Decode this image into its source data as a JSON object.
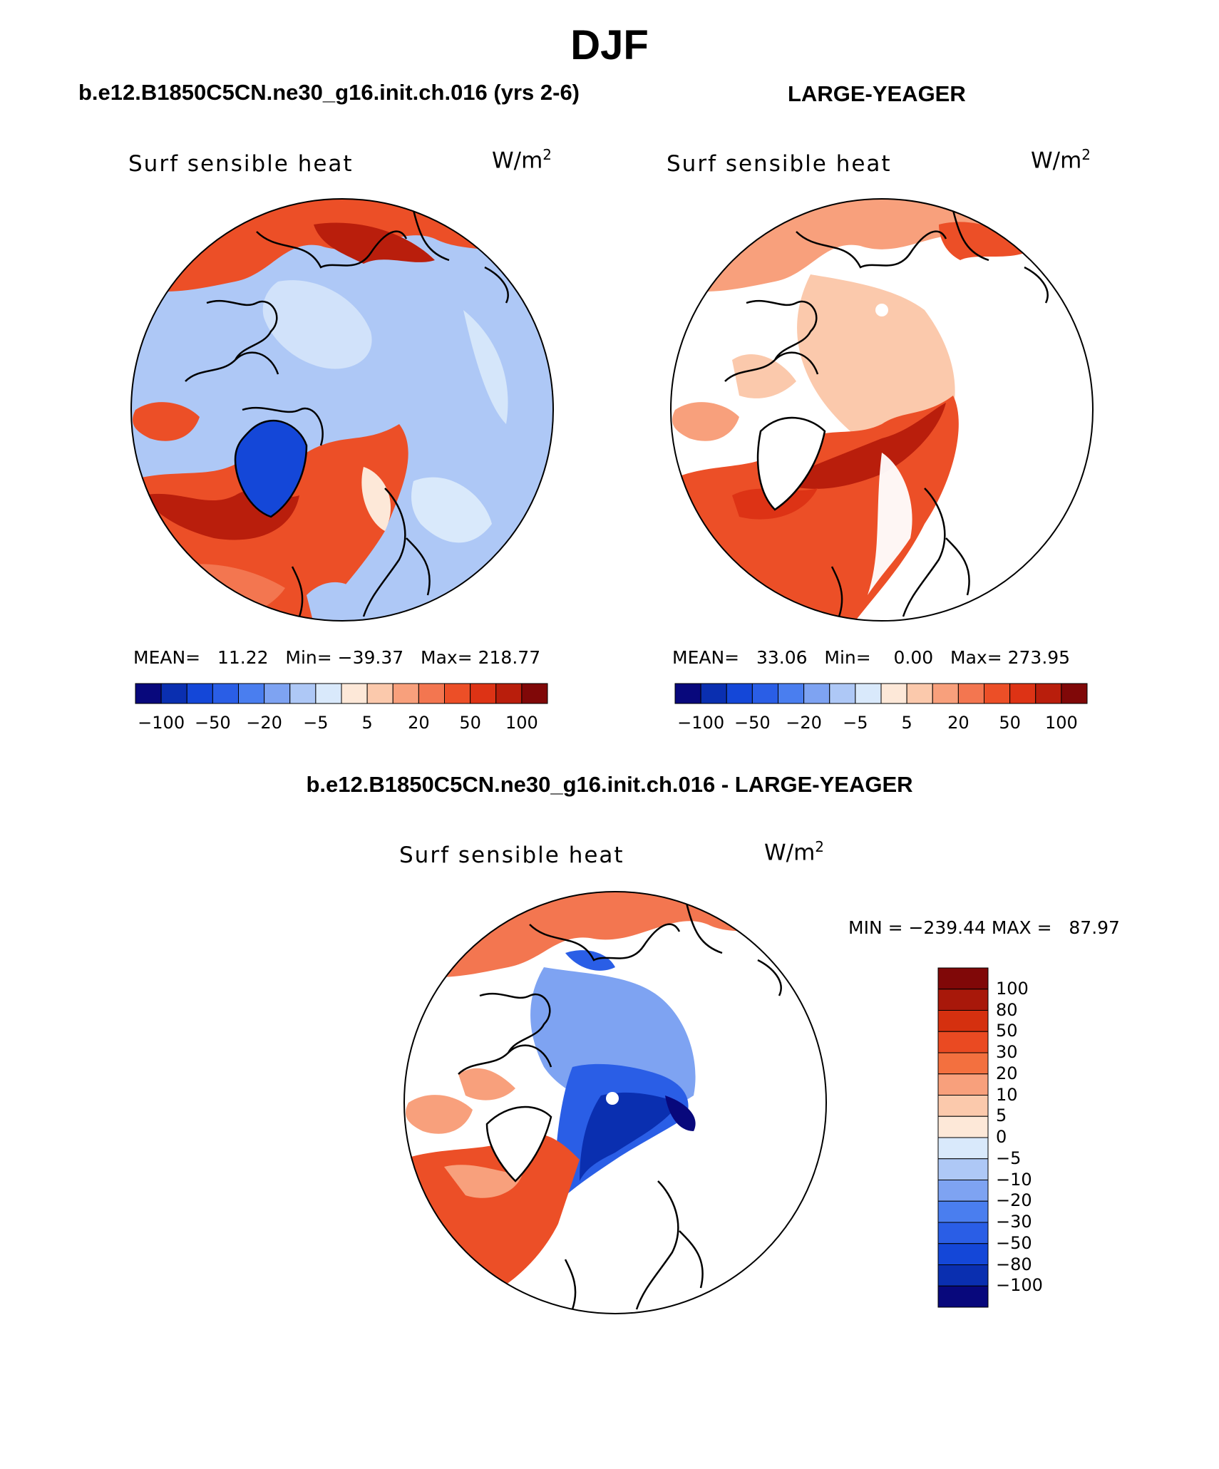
{
  "title": "DJF",
  "panels": [
    {
      "case_title": "b.e12.B1850C5CN.ne30_g16.init.ch.016 (yrs 2-6)",
      "variable": "Surf sensible heat",
      "units": "W/m",
      "units_exp": "2",
      "stats": {
        "mean_label": "MEAN=",
        "mean": "11.22",
        "min_label": "Min=",
        "min": "−39.37",
        "max_label": "Max=",
        "max": "218.77"
      }
    },
    {
      "case_title": "LARGE-YEAGER",
      "variable": "Surf sensible heat",
      "units": "W/m",
      "units_exp": "2",
      "stats": {
        "mean_label": "MEAN=",
        "mean": "33.06",
        "min_label": "Min=",
        "min": "0.00",
        "max_label": "Max=",
        "max": "273.95"
      }
    }
  ],
  "colorbar_horizontal": {
    "colors": [
      "#08087c",
      "#0a2fb0",
      "#1447d8",
      "#2a5ee6",
      "#4a7eef",
      "#7ea3f2",
      "#aec8f6",
      "#d9e9fb",
      "#fde8d8",
      "#fbc9ac",
      "#f8a07c",
      "#f37650",
      "#ec4f27",
      "#dd3315",
      "#b91e0c",
      "#800808"
    ],
    "labels": [
      "−100",
      "−50",
      "−20",
      "−5",
      "5",
      "20",
      "50",
      "100"
    ]
  },
  "diff_panel": {
    "case_title": "b.e12.B1850C5CN.ne30_g16.init.ch.016 - LARGE-YEAGER",
    "variable": "Surf sensible heat",
    "units": "W/m",
    "units_exp": "2",
    "minmax": "MIN = −239.44 MAX =   87.97",
    "colorbar": {
      "colors": [
        "#800808",
        "#a8180a",
        "#d5300f",
        "#ea4a22",
        "#f3703f",
        "#f8a07c",
        "#fbc9ac",
        "#fde8d8",
        "#d9e9fb",
        "#aec8f6",
        "#7ea3f2",
        "#4a7eef",
        "#2a5ee6",
        "#1447d8",
        "#0a2fb0",
        "#08087c"
      ],
      "labels": [
        "100",
        "80",
        "50",
        "30",
        "20",
        "10",
        "5",
        "0",
        "−5",
        "−10",
        "−20",
        "−30",
        "−50",
        "−80",
        "−100"
      ]
    }
  }
}
